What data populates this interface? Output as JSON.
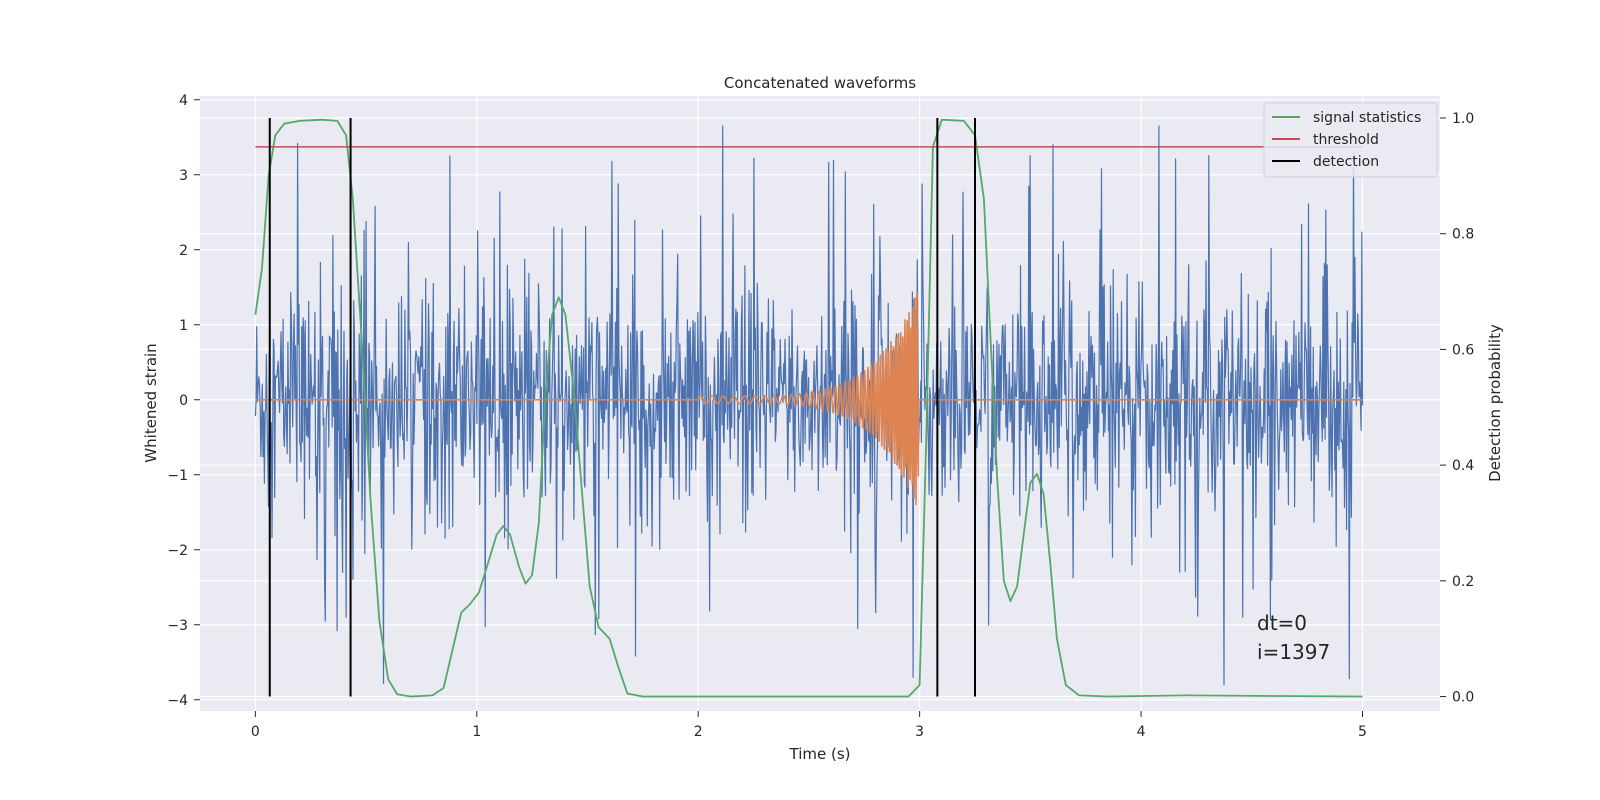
{
  "chart_data": {
    "type": "line",
    "title": "Concatenated waveforms",
    "xlabel": "Time (s)",
    "ylabel_left": "Whitened strain",
    "ylabel_right": "Detection probability",
    "xlim": [
      -0.25,
      5.35
    ],
    "ylim_left": [
      -4.15,
      4.05
    ],
    "ylim_right": [
      -0.025,
      1.038
    ],
    "xticks": [
      0,
      1,
      2,
      3,
      4,
      5
    ],
    "yticks_left": [
      -4,
      -3,
      -2,
      -1,
      0,
      1,
      2,
      3,
      4
    ],
    "yticks_right": [
      0.0,
      0.2,
      0.4,
      0.6,
      0.8,
      1.0
    ],
    "grid": true,
    "legend_position": "top-right",
    "legend": [
      {
        "label": "signal statistics",
        "color": "#55a868"
      },
      {
        "label": "threshold",
        "color": "#c44e52"
      },
      {
        "label": "detection",
        "color": "#000000"
      }
    ],
    "strain_noise": {
      "color": "#4c72b0",
      "t_range": [
        0,
        5
      ],
      "samples": 1600,
      "body_std": 0.7,
      "y_range": [
        -3.8,
        3.65
      ],
      "spikes": [
        {
          "t": 0.19,
          "y": 3.42
        },
        {
          "t": 0.37,
          "y": -3.08
        },
        {
          "t": 0.41,
          "y": -2.9
        },
        {
          "t": 0.58,
          "y": -3.78
        },
        {
          "t": 0.88,
          "y": 3.25
        },
        {
          "t": 1.55,
          "y": -2.92
        },
        {
          "t": 1.61,
          "y": 3.18
        },
        {
          "t": 2.25,
          "y": 3.22
        },
        {
          "t": 2.97,
          "y": -3.7
        },
        {
          "t": 3.31,
          "y": -3.0
        },
        {
          "t": 4.08,
          "y": 3.65
        },
        {
          "t": 4.94,
          "y": -3.72
        },
        {
          "t": 4.46,
          "y": -2.9
        },
        {
          "t": 3.82,
          "y": 3.08
        },
        {
          "t": 2.72,
          "y": -3.05
        }
      ]
    },
    "gw_injection": {
      "color": "#dd8452",
      "t_range": [
        0,
        5
      ],
      "chirp_start": 2.0,
      "merger": 2.99,
      "start_amplitude": 0.05,
      "peak_amplitude": 1.45,
      "start_freq_hz": 20,
      "end_freq_hz": 120
    },
    "signal_statistics": {
      "color": "#55a868",
      "axis": "right",
      "points": [
        [
          0.0,
          0.66
        ],
        [
          0.03,
          0.74
        ],
        [
          0.06,
          0.9
        ],
        [
          0.09,
          0.97
        ],
        [
          0.13,
          0.99
        ],
        [
          0.2,
          0.995
        ],
        [
          0.3,
          0.997
        ],
        [
          0.37,
          0.995
        ],
        [
          0.41,
          0.97
        ],
        [
          0.44,
          0.86
        ],
        [
          0.48,
          0.62
        ],
        [
          0.52,
          0.34
        ],
        [
          0.56,
          0.13
        ],
        [
          0.6,
          0.03
        ],
        [
          0.64,
          0.004
        ],
        [
          0.7,
          0.0
        ],
        [
          0.8,
          0.002
        ],
        [
          0.85,
          0.015
        ],
        [
          0.89,
          0.08
        ],
        [
          0.93,
          0.145
        ],
        [
          0.97,
          0.16
        ],
        [
          1.01,
          0.18
        ],
        [
          1.05,
          0.23
        ],
        [
          1.09,
          0.28
        ],
        [
          1.12,
          0.295
        ],
        [
          1.15,
          0.28
        ],
        [
          1.19,
          0.225
        ],
        [
          1.22,
          0.195
        ],
        [
          1.25,
          0.21
        ],
        [
          1.28,
          0.3
        ],
        [
          1.31,
          0.52
        ],
        [
          1.34,
          0.66
        ],
        [
          1.37,
          0.69
        ],
        [
          1.4,
          0.66
        ],
        [
          1.44,
          0.52
        ],
        [
          1.48,
          0.33
        ],
        [
          1.51,
          0.19
        ],
        [
          1.55,
          0.12
        ],
        [
          1.6,
          0.1
        ],
        [
          1.64,
          0.05
        ],
        [
          1.68,
          0.005
        ],
        [
          1.75,
          0.0
        ],
        [
          2.0,
          0.0
        ],
        [
          2.5,
          0.0
        ],
        [
          2.95,
          0.0
        ],
        [
          3.0,
          0.02
        ],
        [
          3.03,
          0.45
        ],
        [
          3.06,
          0.95
        ],
        [
          3.1,
          0.997
        ],
        [
          3.2,
          0.995
        ],
        [
          3.25,
          0.97
        ],
        [
          3.29,
          0.86
        ],
        [
          3.32,
          0.62
        ],
        [
          3.35,
          0.38
        ],
        [
          3.38,
          0.2
        ],
        [
          3.41,
          0.165
        ],
        [
          3.44,
          0.19
        ],
        [
          3.47,
          0.28
        ],
        [
          3.5,
          0.37
        ],
        [
          3.53,
          0.385
        ],
        [
          3.56,
          0.35
        ],
        [
          3.59,
          0.23
        ],
        [
          3.62,
          0.1
        ],
        [
          3.66,
          0.02
        ],
        [
          3.72,
          0.002
        ],
        [
          3.85,
          0.0
        ],
        [
          4.2,
          0.002
        ],
        [
          4.6,
          0.001
        ],
        [
          5.0,
          0.0
        ]
      ]
    },
    "threshold": {
      "color": "#c44e52",
      "axis": "right",
      "value": 0.95,
      "x_range": [
        0,
        5
      ]
    },
    "detections": {
      "color": "#000000",
      "axis": "right",
      "y_range": [
        0,
        1.0
      ],
      "x": [
        0.065,
        0.43,
        3.08,
        3.25
      ]
    }
  },
  "annotation": {
    "line1": "dt=0",
    "line2": "i=1397"
  }
}
